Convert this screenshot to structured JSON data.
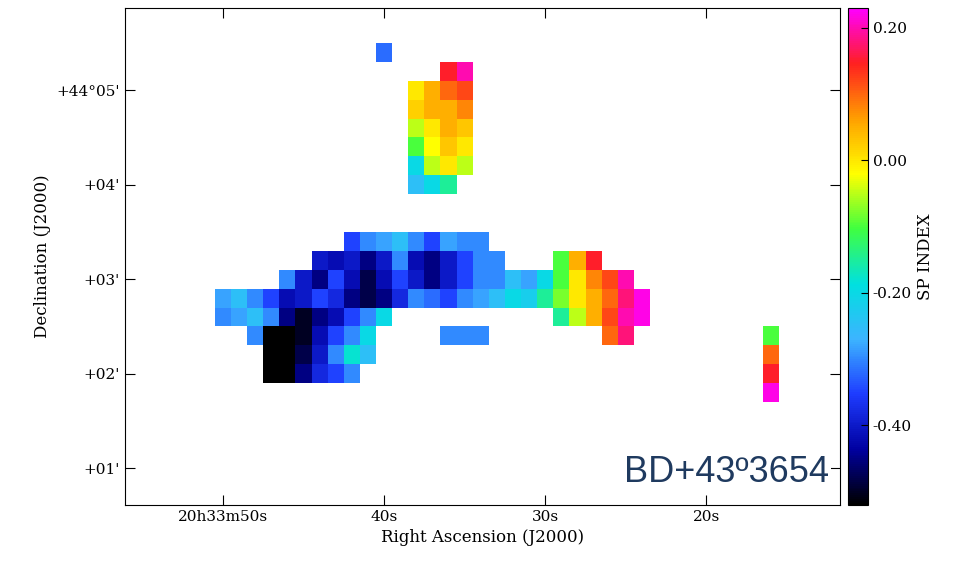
{
  "chart_data": {
    "type": "heatmap",
    "xlabel": "Right Ascension (J2000)",
    "ylabel": "Declination (J2000)",
    "annotations": [
      "BD+43º3654"
    ],
    "xlim": [
      56.1,
      11.7
    ],
    "ylim": [
      0.61,
      5.87
    ],
    "xticks": [
      {
        "value": 50,
        "label": "20h33m50s"
      },
      {
        "value": 40,
        "label": "40s"
      },
      {
        "value": 30,
        "label": "30s"
      },
      {
        "value": 20,
        "label": "20s"
      }
    ],
    "yticks": [
      {
        "value": 5,
        "label": "+44°05'"
      },
      {
        "value": 4,
        "label": "+04'"
      },
      {
        "value": 3,
        "label": "+03'"
      },
      {
        "value": 2,
        "label": "+02'"
      },
      {
        "value": 1,
        "label": "+01'"
      }
    ],
    "x": [
      50,
      49,
      48,
      47,
      46,
      45,
      44,
      43,
      42,
      41,
      40,
      39,
      38,
      37,
      36,
      35,
      34,
      33,
      32,
      31,
      30,
      29,
      28,
      27,
      26,
      25,
      24,
      23,
      22,
      21,
      20,
      19,
      18,
      17,
      16
    ],
    "y": [
      5.4,
      5.2,
      5.0,
      4.8,
      4.6,
      4.4,
      4.2,
      4.0,
      3.8,
      3.6,
      3.4,
      3.2,
      3.0,
      2.8,
      2.6,
      2.4,
      2.2,
      2.0,
      1.8
    ],
    "cells": [
      [
        null,
        null,
        null,
        null,
        null,
        null,
        null,
        null,
        null,
        null,
        -0.32,
        null,
        null,
        null,
        null,
        null,
        null,
        null,
        null,
        null,
        null,
        null,
        null,
        null,
        null,
        null,
        null,
        null,
        null,
        null,
        null,
        null,
        null,
        null,
        null
      ],
      [
        null,
        null,
        null,
        null,
        null,
        null,
        null,
        null,
        null,
        null,
        null,
        null,
        null,
        null,
        0.15,
        0.2,
        null,
        null,
        null,
        null,
        null,
        null,
        null,
        null,
        null,
        null,
        null,
        null,
        null,
        null,
        null,
        null,
        null,
        null,
        null
      ],
      [
        null,
        null,
        null,
        null,
        null,
        null,
        null,
        null,
        null,
        null,
        null,
        null,
        0.0,
        0.05,
        0.1,
        0.12,
        null,
        null,
        null,
        null,
        null,
        null,
        null,
        null,
        null,
        null,
        null,
        null,
        null,
        null,
        null,
        null,
        null,
        null,
        null
      ],
      [
        null,
        null,
        null,
        null,
        null,
        null,
        null,
        null,
        null,
        null,
        null,
        null,
        0.02,
        0.05,
        0.05,
        0.08,
        null,
        null,
        null,
        null,
        null,
        null,
        null,
        null,
        null,
        null,
        null,
        null,
        null,
        null,
        null,
        null,
        null,
        null,
        null
      ],
      [
        null,
        null,
        null,
        null,
        null,
        null,
        null,
        null,
        null,
        null,
        null,
        null,
        -0.05,
        0.0,
        0.05,
        0.03,
        null,
        null,
        null,
        null,
        null,
        null,
        null,
        null,
        null,
        null,
        null,
        null,
        null,
        null,
        null,
        null,
        null,
        null,
        null
      ],
      [
        null,
        null,
        null,
        null,
        null,
        null,
        null,
        null,
        null,
        null,
        null,
        null,
        -0.1,
        -0.02,
        0.03,
        0.0,
        null,
        null,
        null,
        null,
        null,
        null,
        null,
        null,
        null,
        null,
        null,
        null,
        null,
        null,
        null,
        null,
        null,
        null,
        null
      ],
      [
        null,
        null,
        null,
        null,
        null,
        null,
        null,
        null,
        null,
        null,
        null,
        null,
        -0.2,
        -0.05,
        0.0,
        -0.05,
        null,
        null,
        null,
        null,
        null,
        null,
        null,
        null,
        null,
        null,
        null,
        null,
        null,
        null,
        null,
        null,
        null,
        null,
        null
      ],
      [
        null,
        null,
        null,
        null,
        null,
        null,
        null,
        null,
        null,
        null,
        null,
        null,
        -0.25,
        -0.2,
        -0.15,
        null,
        null,
        null,
        null,
        null,
        null,
        null,
        null,
        null,
        null,
        null,
        null,
        null,
        null,
        null,
        null,
        null,
        null,
        null,
        null
      ],
      [
        null,
        null,
        null,
        null,
        null,
        null,
        null,
        null,
        null,
        null,
        null,
        null,
        null,
        null,
        null,
        null,
        null,
        null,
        null,
        null,
        null,
        null,
        null,
        null,
        null,
        null,
        null,
        null,
        null,
        null,
        null,
        null,
        null,
        null,
        null
      ],
      [
        null,
        null,
        null,
        null,
        null,
        null,
        null,
        null,
        null,
        null,
        null,
        null,
        null,
        null,
        null,
        null,
        null,
        null,
        null,
        null,
        null,
        null,
        null,
        null,
        null,
        null,
        null,
        null,
        null,
        null,
        null,
        null,
        null,
        null,
        null
      ],
      [
        null,
        null,
        null,
        null,
        null,
        null,
        null,
        null,
        -0.35,
        -0.3,
        -0.28,
        -0.25,
        -0.3,
        -0.35,
        -0.28,
        -0.3,
        -0.3,
        null,
        null,
        null,
        null,
        null,
        null,
        null,
        null,
        null,
        null,
        null,
        null,
        null,
        null,
        null,
        null,
        null,
        null
      ],
      [
        null,
        null,
        null,
        null,
        null,
        null,
        -0.4,
        -0.42,
        -0.4,
        -0.45,
        -0.4,
        -0.3,
        -0.42,
        -0.45,
        -0.4,
        -0.35,
        -0.3,
        -0.3,
        null,
        null,
        null,
        -0.1,
        0.05,
        0.15,
        null,
        null,
        null,
        null,
        null,
        null,
        null,
        null,
        null,
        null,
        null
      ],
      [
        null,
        null,
        null,
        null,
        -0.3,
        -0.4,
        -0.45,
        -0.35,
        -0.42,
        -0.48,
        -0.42,
        -0.35,
        -0.4,
        -0.45,
        -0.4,
        -0.35,
        -0.3,
        -0.3,
        -0.25,
        -0.28,
        -0.2,
        -0.1,
        0.0,
        0.08,
        0.12,
        0.2,
        null,
        null,
        null,
        null,
        null,
        null,
        null,
        null,
        null
      ],
      [
        -0.28,
        -0.25,
        -0.3,
        -0.35,
        -0.42,
        -0.4,
        -0.35,
        -0.38,
        -0.45,
        -0.48,
        -0.45,
        -0.38,
        -0.3,
        -0.32,
        -0.35,
        -0.3,
        -0.28,
        -0.25,
        -0.2,
        -0.22,
        -0.15,
        -0.08,
        0.0,
        0.05,
        0.1,
        0.18,
        0.22,
        null,
        null,
        null,
        null,
        null,
        null,
        null,
        null
      ],
      [
        -0.3,
        -0.28,
        -0.25,
        -0.3,
        -0.45,
        -0.5,
        -0.45,
        -0.42,
        -0.35,
        -0.3,
        -0.2,
        null,
        null,
        null,
        null,
        null,
        null,
        null,
        null,
        null,
        null,
        -0.15,
        -0.05,
        0.05,
        0.12,
        0.2,
        0.22,
        null,
        null,
        null,
        null,
        null,
        null,
        null,
        null
      ],
      [
        null,
        null,
        -0.3,
        -0.52,
        -0.52,
        -0.5,
        -0.42,
        -0.35,
        -0.3,
        -0.2,
        null,
        null,
        null,
        null,
        -0.3,
        -0.3,
        -0.3,
        null,
        null,
        null,
        null,
        null,
        null,
        null,
        0.1,
        0.18,
        null,
        null,
        null,
        null,
        null,
        null,
        null,
        null,
        -0.1
      ],
      [
        null,
        null,
        null,
        -0.52,
        -0.52,
        -0.48,
        -0.4,
        -0.3,
        -0.18,
        -0.25,
        null,
        null,
        null,
        null,
        null,
        null,
        null,
        null,
        null,
        null,
        null,
        null,
        null,
        null,
        null,
        null,
        null,
        null,
        null,
        null,
        null,
        null,
        null,
        null,
        0.1
      ],
      [
        null,
        null,
        null,
        -0.52,
        -0.52,
        -0.45,
        -0.38,
        -0.35,
        -0.3,
        null,
        null,
        null,
        null,
        null,
        null,
        null,
        null,
        null,
        null,
        null,
        null,
        null,
        null,
        null,
        null,
        null,
        null,
        null,
        null,
        null,
        null,
        null,
        null,
        null,
        0.15
      ],
      [
        null,
        null,
        null,
        null,
        null,
        null,
        null,
        null,
        null,
        null,
        null,
        null,
        null,
        null,
        null,
        null,
        null,
        null,
        null,
        null,
        null,
        null,
        null,
        null,
        null,
        null,
        null,
        null,
        null,
        null,
        null,
        null,
        null,
        null,
        0.22
      ]
    ],
    "colorbar": {
      "label": "SP INDEX",
      "range": [
        -0.52,
        0.23
      ],
      "ticks": [
        {
          "value": 0.2,
          "label": "0.20"
        },
        {
          "value": 0.0,
          "label": "0.00"
        },
        {
          "value": -0.2,
          "label": "-0.20"
        },
        {
          "value": -0.4,
          "label": "-0.40"
        }
      ]
    }
  }
}
